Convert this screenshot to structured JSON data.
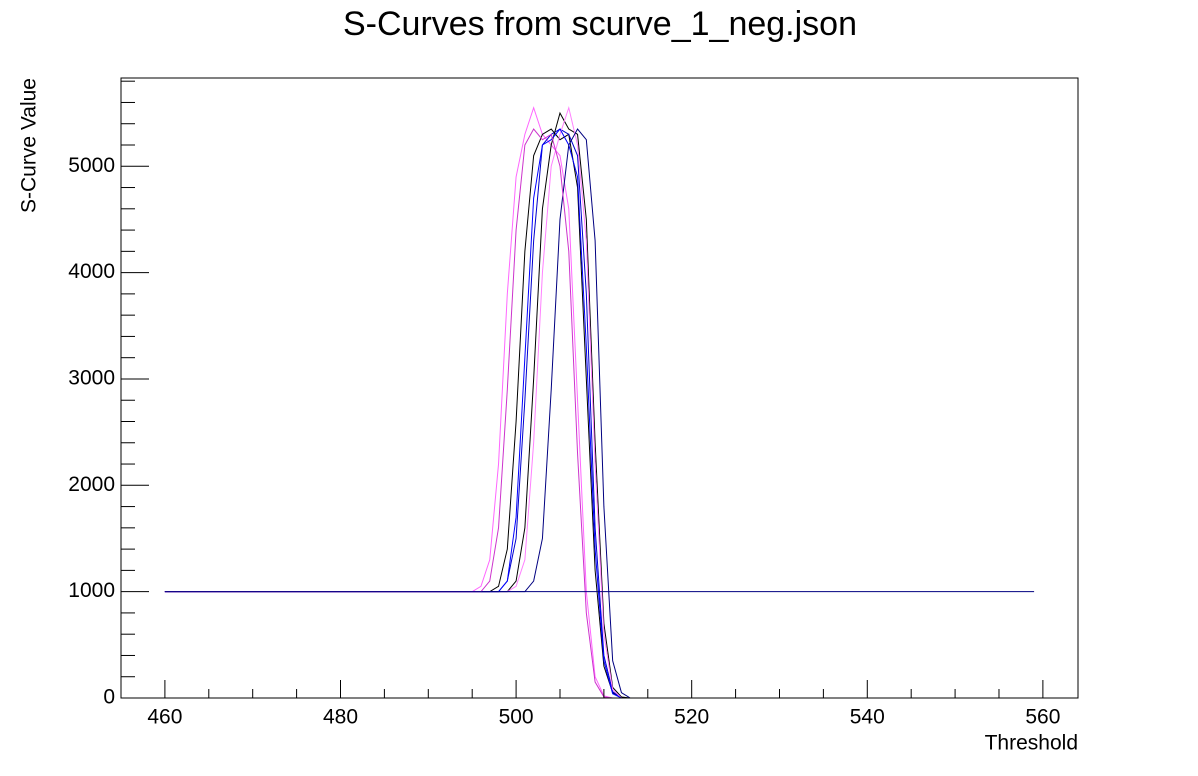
{
  "chart_data": {
    "type": "line",
    "title": "S-Curves from scurve_1_neg.json",
    "x_label": "Threshold",
    "y_label": "S-Curve Value",
    "x": [
      460,
      495,
      496,
      497,
      498,
      499,
      500,
      501,
      502,
      503,
      504,
      505,
      506,
      507,
      508,
      509,
      510,
      511,
      512,
      513,
      559
    ],
    "series": [
      {
        "color": "#ff66ff",
        "values": [
          1000,
          1000,
          1050,
          1300,
          2200,
          3800,
          4900,
          5300,
          5550,
          5300,
          5200,
          5100,
          4600,
          2800,
          1000,
          200,
          20,
          0,
          0,
          0,
          0
        ]
      },
      {
        "color": "#000000",
        "values": [
          1000,
          1000,
          1000,
          1000,
          1050,
          1400,
          2600,
          4200,
          5100,
          5300,
          5350,
          5250,
          5300,
          4800,
          3000,
          1200,
          300,
          50,
          0,
          0,
          0
        ]
      },
      {
        "color": "#0000cc",
        "values": [
          1000,
          1000,
          1000,
          1000,
          1000,
          1100,
          1500,
          2800,
          4300,
          5200,
          5300,
          5350,
          5300,
          5100,
          3800,
          1600,
          400,
          60,
          0,
          0,
          0
        ]
      },
      {
        "color": "#000000",
        "values": [
          1000,
          1000,
          1000,
          1000,
          1000,
          1000,
          1100,
          1600,
          3000,
          4600,
          5200,
          5500,
          5350,
          5300,
          4500,
          2400,
          700,
          100,
          10,
          0,
          0
        ]
      },
      {
        "color": "#ff80ff",
        "values": [
          1000,
          1000,
          1000,
          1000,
          1000,
          1000,
          1050,
          1300,
          2400,
          4000,
          5000,
          5300,
          5550,
          5200,
          4300,
          2200,
          600,
          80,
          0,
          0,
          0
        ]
      },
      {
        "color": "#0000ff",
        "values": [
          1000,
          1000,
          1000,
          1000,
          1000,
          1100,
          1700,
          3200,
          4700,
          5200,
          5250,
          5350,
          5200,
          4900,
          3300,
          1400,
          350,
          40,
          0,
          0,
          0
        ]
      },
      {
        "color": "#000080",
        "values": [
          1000,
          1000,
          1000,
          1000,
          1000,
          1000,
          1000,
          1000,
          1100,
          1500,
          2900,
          4500,
          5200,
          5350,
          5250,
          4300,
          1800,
          350,
          50,
          0,
          0
        ]
      },
      {
        "color": "#cc33cc",
        "values": [
          1000,
          1000,
          1000,
          1100,
          1600,
          2900,
          4400,
          5200,
          5350,
          5250,
          5300,
          5000,
          4200,
          2300,
          800,
          150,
          10,
          0,
          0,
          0,
          0
        ]
      },
      {
        "color": "#000080",
        "values": [
          1000,
          1000,
          1000,
          1000,
          1000,
          1000,
          1000,
          1000,
          1000,
          1000,
          1000,
          1000,
          1000,
          1000,
          1000,
          1000,
          1000,
          1000,
          1000,
          1000,
          1000
        ]
      }
    ],
    "xlim": [
      455,
      564
    ],
    "ylim": [
      0,
      5830
    ],
    "xticks": [
      460,
      480,
      500,
      520,
      540,
      560
    ],
    "yticks": [
      0,
      1000,
      2000,
      3000,
      4000,
      5000
    ]
  }
}
